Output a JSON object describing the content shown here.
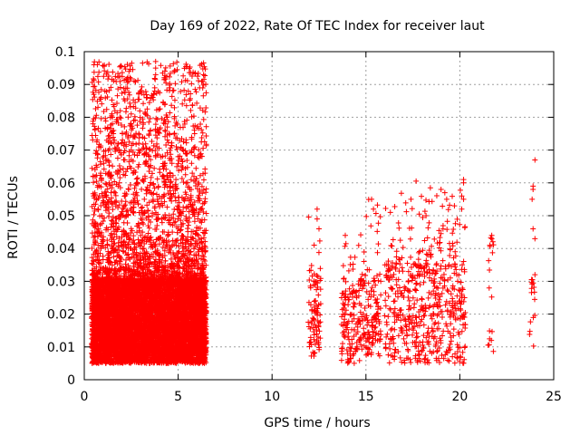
{
  "chart_data": {
    "type": "scatter",
    "title": "Day 169 of 2022, Rate Of TEC Index for receiver laut",
    "xlabel": "GPS time / hours",
    "ylabel": "ROTI / TECUs",
    "xlim": [
      0,
      25
    ],
    "ylim": [
      0,
      0.1
    ],
    "x_ticks": [
      0,
      5,
      10,
      15,
      20,
      25
    ],
    "x_tick_labels": [
      "0",
      "5",
      "10",
      "15",
      "20",
      "25"
    ],
    "y_ticks": [
      0,
      0.01,
      0.02,
      0.03,
      0.04,
      0.05,
      0.06,
      0.07,
      0.08,
      0.09,
      0.1
    ],
    "y_tick_labels": [
      "0",
      "0.01",
      "0.02",
      "0.03",
      "0.04",
      "0.05",
      "0.06",
      "0.07",
      "0.08",
      "0.09",
      "0.1"
    ],
    "grid": true,
    "marker": "+",
    "color": "#ff0000",
    "clusters": [
      {
        "x_range": [
          0.4,
          6.5
        ],
        "y_core": [
          0.005,
          0.03
        ],
        "y_max": 0.097,
        "density": "high"
      },
      {
        "x_range": [
          11.9,
          12.6
        ],
        "y_core": [
          0.007,
          0.03
        ],
        "y_max": 0.052,
        "density": "medium"
      },
      {
        "x_range": [
          13.7,
          14.7
        ],
        "y_core": [
          0.005,
          0.025
        ],
        "y_max": 0.044,
        "density": "medium"
      },
      {
        "x_range": [
          14.7,
          15.8
        ],
        "y_core": [
          0.007,
          0.03
        ],
        "y_max": 0.055,
        "density": "medium"
      },
      {
        "x_range": [
          16.0,
          20.3
        ],
        "y_core": [
          0.005,
          0.035
        ],
        "y_max": 0.061,
        "density": "medium"
      },
      {
        "x_range": [
          21.5,
          21.8
        ],
        "y_core": [
          0.006,
          0.04
        ],
        "y_max": 0.044,
        "density": "low"
      },
      {
        "x_range": [
          23.7,
          24.0
        ],
        "y_core": [
          0.01,
          0.03
        ],
        "y_max": 0.067,
        "density": "low"
      }
    ],
    "highlighted_points": [
      {
        "x": 3.8,
        "y": 0.097
      },
      {
        "x": 3.8,
        "y": 0.095
      },
      {
        "x": 3.8,
        "y": 0.093
      },
      {
        "x": 3.75,
        "y": 0.089
      },
      {
        "x": 3.75,
        "y": 0.088
      },
      {
        "x": 4.3,
        "y": 0.084
      },
      {
        "x": 4.3,
        "y": 0.078
      },
      {
        "x": 4.3,
        "y": 0.076
      },
      {
        "x": 1.5,
        "y": 0.08
      },
      {
        "x": 1.5,
        "y": 0.078
      },
      {
        "x": 1.55,
        "y": 0.075
      },
      {
        "x": 1.2,
        "y": 0.073
      },
      {
        "x": 1.6,
        "y": 0.073
      },
      {
        "x": 2.6,
        "y": 0.074
      },
      {
        "x": 2.6,
        "y": 0.072
      },
      {
        "x": 2.5,
        "y": 0.07
      },
      {
        "x": 4.9,
        "y": 0.071
      },
      {
        "x": 5.0,
        "y": 0.068
      },
      {
        "x": 4.3,
        "y": 0.066
      },
      {
        "x": 2.6,
        "y": 0.063
      },
      {
        "x": 1.4,
        "y": 0.062
      },
      {
        "x": 24.0,
        "y": 0.067
      },
      {
        "x": 23.9,
        "y": 0.059
      },
      {
        "x": 23.9,
        "y": 0.058
      },
      {
        "x": 23.85,
        "y": 0.055
      },
      {
        "x": 23.9,
        "y": 0.046
      },
      {
        "x": 24.0,
        "y": 0.043
      },
      {
        "x": 24.0,
        "y": 0.032
      },
      {
        "x": 20.2,
        "y": 0.061
      },
      {
        "x": 20.2,
        "y": 0.06
      },
      {
        "x": 20.1,
        "y": 0.056
      },
      {
        "x": 20.2,
        "y": 0.055
      },
      {
        "x": 20.1,
        "y": 0.052
      },
      {
        "x": 19.0,
        "y": 0.058
      },
      {
        "x": 19.2,
        "y": 0.057
      },
      {
        "x": 19.3,
        "y": 0.055
      },
      {
        "x": 15.3,
        "y": 0.055
      },
      {
        "x": 15.4,
        "y": 0.052
      },
      {
        "x": 17.4,
        "y": 0.055
      },
      {
        "x": 12.4,
        "y": 0.052
      },
      {
        "x": 12.4,
        "y": 0.049
      },
      {
        "x": 12.5,
        "y": 0.046
      },
      {
        "x": 16.3,
        "y": 0.051
      },
      {
        "x": 18.2,
        "y": 0.05
      },
      {
        "x": 13.9,
        "y": 0.044
      },
      {
        "x": 21.7,
        "y": 0.044
      },
      {
        "x": 21.7,
        "y": 0.043
      },
      {
        "x": 21.6,
        "y": 0.041
      },
      {
        "x": 1.8,
        "y": 0.059
      },
      {
        "x": 0.8,
        "y": 0.059
      },
      {
        "x": 0.5,
        "y": 0.056
      },
      {
        "x": 3.2,
        "y": 0.055
      },
      {
        "x": 5.1,
        "y": 0.051
      }
    ]
  }
}
